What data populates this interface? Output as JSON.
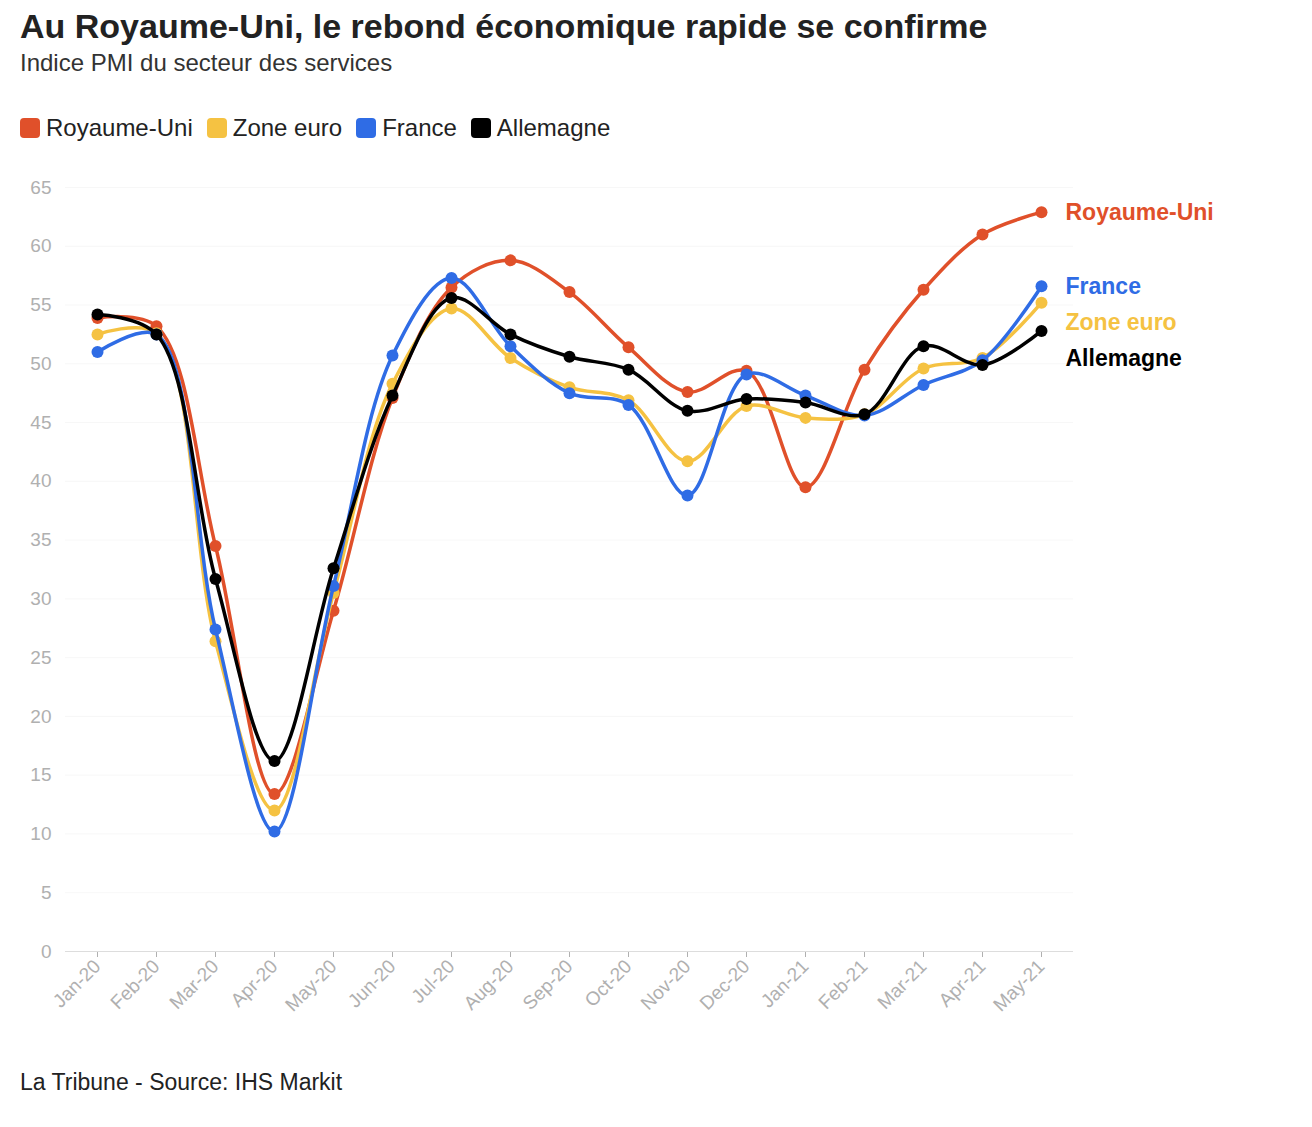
{
  "chart_data": {
    "type": "line",
    "title": "Au Royaume-Uni, le rebond économique rapide se confirme",
    "subtitle": "Indice PMI du secteur des services",
    "caption": "La Tribune - Source: IHS Markit",
    "categories": [
      "Jan-20",
      "Feb-20",
      "Mar-20",
      "Apr-20",
      "May-20",
      "Jun-20",
      "Jul-20",
      "Aug-20",
      "Sep-20",
      "Oct-20",
      "Nov-20",
      "Dec-20",
      "Jan-21",
      "Feb-21",
      "Mar-21",
      "Apr-21",
      "May-21"
    ],
    "series": [
      {
        "name": "Royaume-Uni",
        "color": "#e0502a",
        "values": [
          53.9,
          53.2,
          34.5,
          13.4,
          29.0,
          47.1,
          56.5,
          58.8,
          56.1,
          51.4,
          47.6,
          49.4,
          39.5,
          49.5,
          56.3,
          61.0,
          62.9
        ]
      },
      {
        "name": "Zone euro",
        "color": "#f5c242",
        "values": [
          52.5,
          52.6,
          26.4,
          12.0,
          30.5,
          48.3,
          54.7,
          50.5,
          48.0,
          46.9,
          41.7,
          46.4,
          45.4,
          45.7,
          49.6,
          50.5,
          55.2
        ]
      },
      {
        "name": "France",
        "color": "#2f6ce5",
        "values": [
          51.0,
          52.5,
          27.4,
          10.2,
          31.1,
          50.7,
          57.3,
          51.5,
          47.5,
          46.5,
          38.8,
          49.1,
          47.3,
          45.6,
          48.2,
          50.3,
          56.6
        ]
      },
      {
        "name": "Allemagne",
        "color": "#000000",
        "values": [
          54.2,
          52.5,
          31.7,
          16.2,
          32.6,
          47.3,
          55.6,
          52.5,
          50.6,
          49.5,
          46.0,
          47.0,
          46.7,
          45.7,
          51.5,
          49.9,
          52.8
        ]
      }
    ],
    "ylim": [
      0,
      65
    ],
    "yticks": [
      0,
      5,
      10,
      15,
      20,
      25,
      30,
      35,
      40,
      45,
      50,
      55,
      60,
      65
    ],
    "grid": true,
    "legend": "top-left",
    "marker": "circle"
  }
}
